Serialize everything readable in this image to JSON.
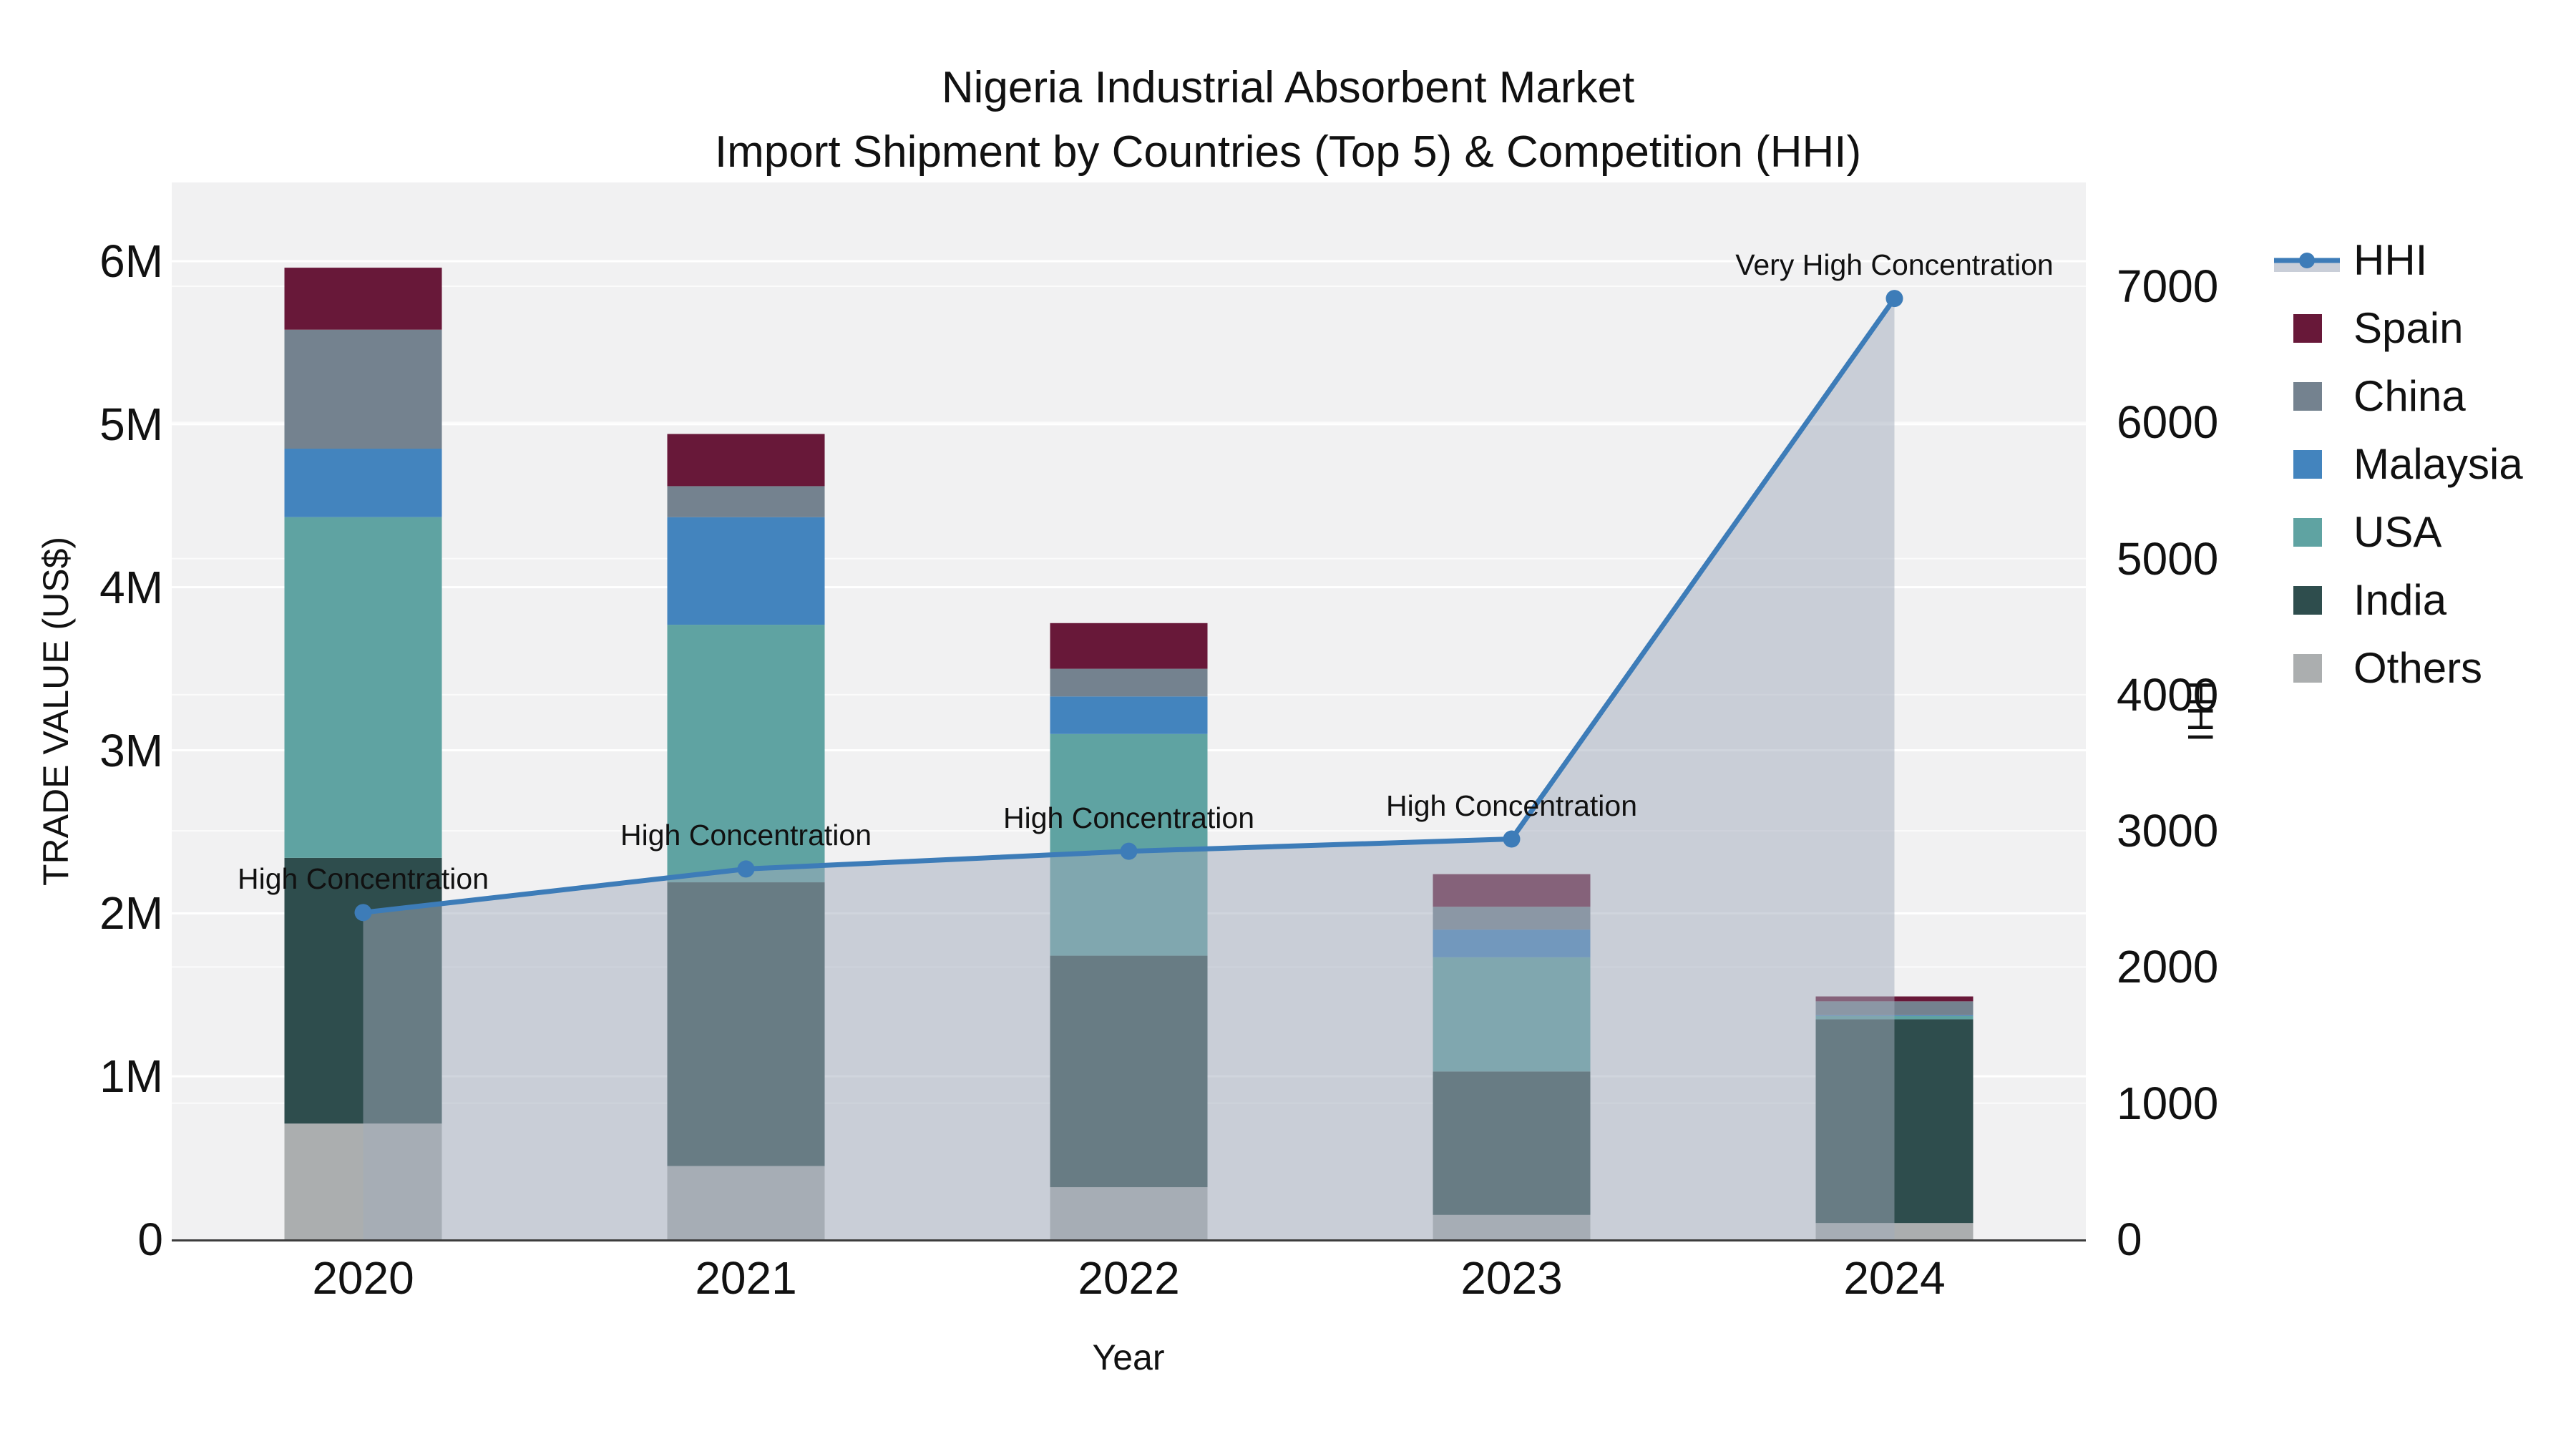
{
  "title": {
    "line1": "Nigeria Industrial Absorbent Market",
    "line2": "Import Shipment by Countries (Top 5) & Competition (HHI)"
  },
  "axes": {
    "x": {
      "title": "Year",
      "ticks": [
        "2020",
        "2021",
        "2022",
        "2023",
        "2024"
      ]
    },
    "y_left": {
      "title": "TRADE VALUE (US$)",
      "ticks": [
        "0",
        "1M",
        "2M",
        "3M",
        "4M",
        "5M",
        "6M"
      ],
      "min": 0,
      "max": 6000000
    },
    "y_right": {
      "title": "HHI",
      "ticks": [
        "0",
        "1000",
        "2000",
        "3000",
        "4000",
        "5000",
        "6000",
        "7000"
      ],
      "min": 0,
      "max": 7000
    }
  },
  "legend": {
    "items": [
      {
        "label": "HHI",
        "type": "line",
        "color": "#3d7cb8",
        "fill": "#c9ced8"
      },
      {
        "label": "Spain",
        "type": "swatch",
        "color": "#681839"
      },
      {
        "label": "China",
        "type": "swatch",
        "color": "#74828f"
      },
      {
        "label": "Malaysia",
        "type": "swatch",
        "color": "#4384be"
      },
      {
        "label": "USA",
        "type": "swatch",
        "color": "#5fa3a2"
      },
      {
        "label": "India",
        "type": "swatch",
        "color": "#2e4d4d"
      },
      {
        "label": "Others",
        "type": "swatch",
        "color": "#abaeaf"
      }
    ]
  },
  "chart_data": {
    "type": "bar+line",
    "title": "Nigeria Industrial Absorbent Market — Import Shipment by Countries (Top 5) & Competition (HHI)",
    "categories": [
      "2020",
      "2021",
      "2022",
      "2023",
      "2024"
    ],
    "bar_mode": "stacked",
    "stack_order_bottom_to_top": [
      "Others",
      "India",
      "USA",
      "Malaysia",
      "China",
      "Spain"
    ],
    "series": [
      {
        "name": "Others",
        "color": "#abaeaf",
        "values": [
          710000,
          450000,
          320000,
          150000,
          100000
        ]
      },
      {
        "name": "India",
        "color": "#2e4d4d",
        "values": [
          1630000,
          1740000,
          1420000,
          880000,
          1250000
        ]
      },
      {
        "name": "USA",
        "color": "#5fa3a2",
        "values": [
          2090000,
          1580000,
          1360000,
          700000,
          20000
        ]
      },
      {
        "name": "Malaysia",
        "color": "#4384be",
        "values": [
          420000,
          660000,
          230000,
          170000,
          5000
        ]
      },
      {
        "name": "China",
        "color": "#74828f",
        "values": [
          730000,
          190000,
          170000,
          140000,
          85000
        ]
      },
      {
        "name": "Spain",
        "color": "#681839",
        "values": [
          380000,
          320000,
          280000,
          200000,
          30000
        ]
      }
    ],
    "bar_totals": [
      5960000,
      4940000,
      3780000,
      2240000,
      1490000
    ],
    "line_series": {
      "name": "HHI",
      "axis": "y_right",
      "color": "#3d7cb8",
      "area_fill": "rgba(161,171,187,0.5)",
      "values": [
        2400,
        2720,
        2850,
        2940,
        6910
      ]
    },
    "annotations": [
      {
        "category": "2020",
        "text": "High Concentration"
      },
      {
        "category": "2021",
        "text": "High Concentration"
      },
      {
        "category": "2022",
        "text": "High Concentration"
      },
      {
        "category": "2023",
        "text": "High Concentration"
      },
      {
        "category": "2024",
        "text": "Very High Concentration"
      }
    ],
    "xlabel": "Year",
    "ylabel_left": "TRADE VALUE (US$)",
    "ylabel_right": "HHI",
    "y_left_range": [
      0,
      6000000
    ],
    "y_right_range": [
      0,
      7000
    ],
    "grid": true,
    "plot_background": "#f1f1f2",
    "legend_position": "right"
  }
}
